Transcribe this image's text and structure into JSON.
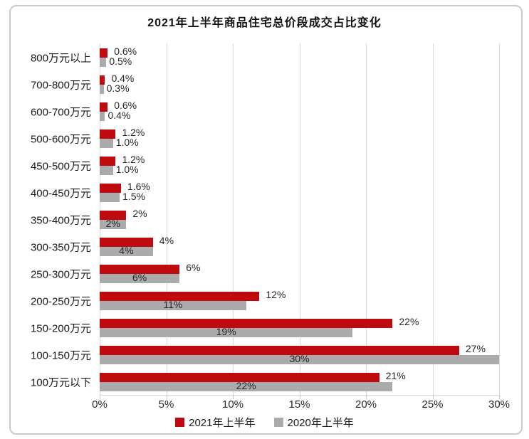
{
  "chart_data": {
    "type": "bar",
    "orientation": "horizontal",
    "title": "2021年上半年商品住宅总价段成交占比变化",
    "categories": [
      "800万元以上",
      "700-800万元",
      "600-700万元",
      "500-600万元",
      "450-500万元",
      "400-450万元",
      "350-400万元",
      "300-350万元",
      "250-300万元",
      "200-250万元",
      "150-200万元",
      "100-150万元",
      "100万元以下"
    ],
    "series": [
      {
        "name": "2021年上半年",
        "color": "#bf0b10",
        "values": [
          0.6,
          0.4,
          0.6,
          1.2,
          1.2,
          1.6,
          2,
          4,
          6,
          12,
          22,
          27,
          21
        ],
        "labels": [
          "0.6%",
          "0.4%",
          "0.6%",
          "1.2%",
          "1.2%",
          "1.6%",
          "2%",
          "4%",
          "6%",
          "12%",
          "22%",
          "27%",
          "21%"
        ]
      },
      {
        "name": "2020年上半年",
        "color": "#ababab",
        "values": [
          0.5,
          0.3,
          0.4,
          1.0,
          1.0,
          1.5,
          2,
          4,
          6,
          11,
          19,
          30,
          22
        ],
        "labels": [
          "0.5%",
          "0.3%",
          "0.4%",
          "1.0%",
          "1.0%",
          "1.5%",
          "2%",
          "4%",
          "6%",
          "11%",
          "19%",
          "30%",
          "22%"
        ]
      }
    ],
    "x_axis": {
      "min": 0,
      "max": 30,
      "tick_labels": [
        "0%",
        "5%",
        "10%",
        "15%",
        "20%",
        "25%",
        "30%"
      ],
      "gridlines": true
    },
    "legend_position": "bottom"
  },
  "styling": {
    "background": "#ffffff",
    "frame_border_color": "#c9c9c9",
    "gridline_color": "#d9d9d9",
    "label_color": "#262626",
    "title_color": "#111111",
    "series_2021_color": "#bf0b10",
    "series_2020_color": "#ababab"
  }
}
